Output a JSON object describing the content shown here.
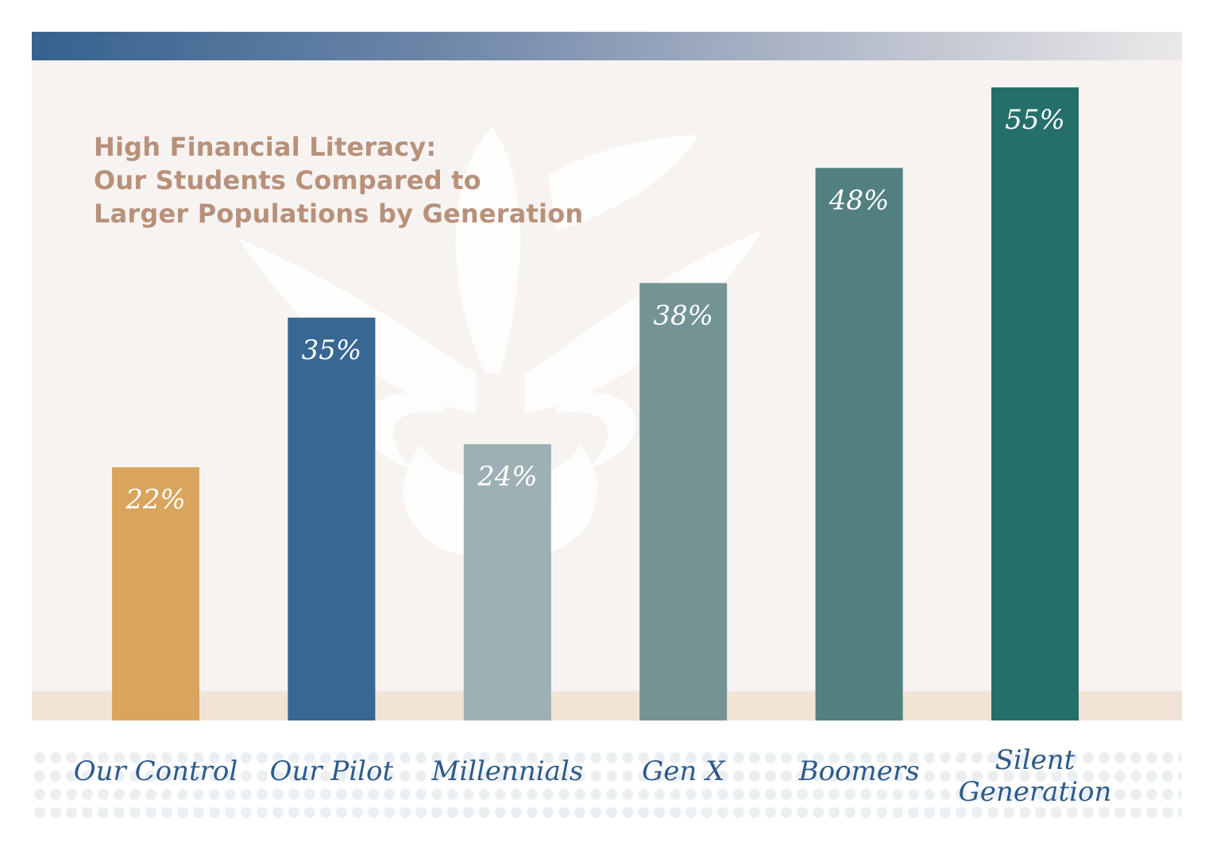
{
  "chart_data": {
    "type": "bar",
    "title": "High Financial Literacy: Our Students Compared to Larger Populations by Generation",
    "title_lines": [
      "High Financial Literacy:",
      "Our Students Compared to",
      "Larger Populations by Generation"
    ],
    "categories": [
      "Our Control",
      "Our Pilot",
      "Millennials",
      "Gen X",
      "Boomers",
      "Silent Generation"
    ],
    "category_label_lines": [
      [
        "Our Control"
      ],
      [
        "Our Pilot"
      ],
      [
        "Millennials"
      ],
      [
        "Gen X"
      ],
      [
        "Boomers"
      ],
      [
        "Silent",
        "Generation"
      ]
    ],
    "values": [
      22,
      35,
      24,
      38,
      48,
      55
    ],
    "value_labels": [
      "22%",
      "35%",
      "24%",
      "38%",
      "48%",
      "55%"
    ],
    "unit": "%",
    "ylim": [
      0,
      55
    ],
    "grid": false,
    "legend": "none",
    "xlabel": "",
    "ylabel": "",
    "colors": [
      "#d9a45c",
      "#386794",
      "#9db0b3",
      "#739394",
      "#528080",
      "#256f6b"
    ],
    "title_color": "#b8917b",
    "category_label_color": "#2d5a8a",
    "value_label_color": "#ffffff"
  }
}
